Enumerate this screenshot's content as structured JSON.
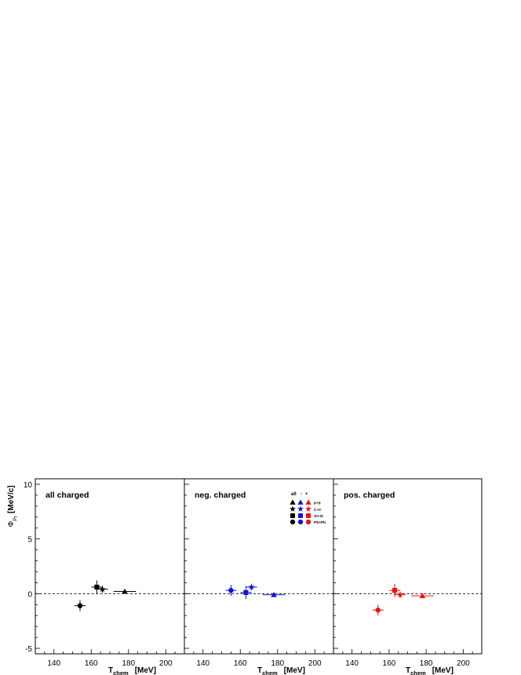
{
  "figure": {
    "y_axis_label": {
      "symbol": "Φ",
      "subscript": "p",
      "sub_subscript": "T",
      "unit": "[MeV/c]"
    },
    "x_axis_label": {
      "main": "T",
      "subscript": "chem",
      "unit": "[MeV]"
    }
  },
  "legend": {
    "columns": [
      "all",
      "-",
      "+"
    ],
    "rows": [
      {
        "marker": "triangle",
        "label": "p+p"
      },
      {
        "marker": "star",
        "label": "C+C"
      },
      {
        "marker": "square",
        "label": "Si+Si"
      },
      {
        "marker": "circle",
        "label": "Pb+Pb"
      }
    ],
    "colors": [
      "#000000",
      "#1010e0",
      "#ee1111"
    ]
  },
  "chart_data": [
    {
      "type": "scatter",
      "panel_label": "all charged",
      "color": "#000000",
      "xlim": [
        130,
        210
      ],
      "ylim": [
        -5.5,
        10.5
      ],
      "xticks": [
        140,
        160,
        180,
        200
      ],
      "yticks": [
        -5,
        0,
        5,
        10
      ],
      "reference_line_y": 0,
      "points": [
        {
          "system": "p+p",
          "marker": "triangle",
          "x": 178,
          "y": 0.2,
          "xerr": 6,
          "yerr": 0.2
        },
        {
          "system": "C+C",
          "marker": "star",
          "x": 166,
          "y": 0.4,
          "xerr": 3,
          "yerr": 0.3
        },
        {
          "system": "Si+Si",
          "marker": "square",
          "x": 163,
          "y": 0.6,
          "xerr": 3,
          "yerr": 0.6
        },
        {
          "system": "Pb+Pb",
          "marker": "circle",
          "x": 154,
          "y": -1.1,
          "xerr": 3,
          "yerr": 0.5
        }
      ]
    },
    {
      "type": "scatter",
      "panel_label": "neg. charged",
      "color": "#1010e0",
      "xlim": [
        130,
        210
      ],
      "ylim": [
        -5.5,
        10.5
      ],
      "xticks": [
        140,
        160,
        180,
        200
      ],
      "yticks": [
        -5,
        0,
        5,
        10
      ],
      "reference_line_y": 0,
      "points": [
        {
          "system": "p+p",
          "marker": "triangle",
          "x": 178,
          "y": -0.1,
          "xerr": 6,
          "yerr": 0.2
        },
        {
          "system": "C+C",
          "marker": "star",
          "x": 166,
          "y": 0.6,
          "xerr": 3,
          "yerr": 0.3
        },
        {
          "system": "Si+Si",
          "marker": "square",
          "x": 163,
          "y": 0.1,
          "xerr": 3,
          "yerr": 0.6
        },
        {
          "system": "Pb+Pb",
          "marker": "circle",
          "x": 155,
          "y": 0.3,
          "xerr": 3,
          "yerr": 0.5
        }
      ]
    },
    {
      "type": "scatter",
      "panel_label": "pos. charged",
      "color": "#ee1111",
      "xlim": [
        130,
        210
      ],
      "ylim": [
        -5.5,
        10.5
      ],
      "xticks": [
        140,
        160,
        180,
        200
      ],
      "yticks": [
        -5,
        0,
        5,
        10
      ],
      "reference_line_y": 0,
      "points": [
        {
          "system": "p+p",
          "marker": "triangle",
          "x": 178,
          "y": -0.2,
          "xerr": 6,
          "yerr": 0.2
        },
        {
          "system": "C+C",
          "marker": "star",
          "x": 166,
          "y": -0.1,
          "xerr": 3,
          "yerr": 0.3
        },
        {
          "system": "Si+Si",
          "marker": "square",
          "x": 163,
          "y": 0.3,
          "xerr": 3,
          "yerr": 0.6
        },
        {
          "system": "Pb+Pb",
          "marker": "circle",
          "x": 154,
          "y": -1.5,
          "xerr": 3,
          "yerr": 0.5
        }
      ]
    }
  ]
}
